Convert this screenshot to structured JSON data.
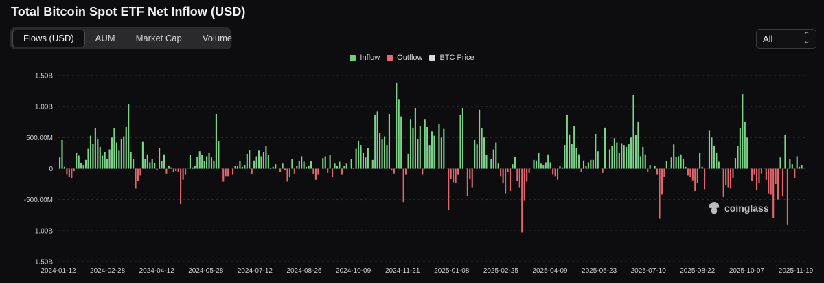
{
  "title": "Total Bitcoin Spot ETF Net Inflow (USD)",
  "tabs": [
    {
      "label": "Flows (USD)",
      "active": true
    },
    {
      "label": "AUM",
      "active": false
    },
    {
      "label": "Market Cap",
      "active": false
    },
    {
      "label": "Volume",
      "active": false
    }
  ],
  "range_selector": {
    "value": "All"
  },
  "legend": [
    {
      "label": "Inflow",
      "color": "#6fcf7c"
    },
    {
      "label": "Outflow",
      "color": "#e56b6f"
    },
    {
      "label": "BTC Price",
      "color": "#d9d9d9"
    }
  ],
  "watermark": "coinglass",
  "colors": {
    "inflow": "#7bd389",
    "outflow": "#e0666c",
    "grid": "#2b2b30",
    "background": "#0d0d0f"
  },
  "chart_data": {
    "type": "bar",
    "title": "Total Bitcoin Spot ETF Net Inflow (USD)",
    "ylim": [
      -1500000000,
      1500000000
    ],
    "y_ticks": [
      {
        "value": 1500000000,
        "label": "1.50B"
      },
      {
        "value": 1000000000,
        "label": "1.00B"
      },
      {
        "value": 500000000,
        "label": "500.00M"
      },
      {
        "value": 0,
        "label": "0"
      },
      {
        "value": -500000000,
        "label": "-500.00M"
      },
      {
        "value": -1000000000,
        "label": "-1.00B"
      },
      {
        "value": -1500000000,
        "label": "-1.50B"
      }
    ],
    "x_ticks": [
      "2024-01-12",
      "2024-02-28",
      "2024-04-12",
      "2024-05-28",
      "2024-07-12",
      "2024-08-26",
      "2024-10-09",
      "2024-11-21",
      "2025-01-08",
      "2025-02-25",
      "2025-04-09",
      "2025-05-23",
      "2025-07-10",
      "2025-08-22",
      "2025-10-07",
      "2025-11-19"
    ],
    "grid": true,
    "legend_position": "top-center",
    "series": [
      {
        "name": "Inflow / Outflow",
        "unit": "USD millions",
        "values": [
          180,
          460,
          30,
          -100,
          -130,
          -150,
          -40,
          250,
          210,
          90,
          60,
          140,
          320,
          530,
          400,
          650,
          480,
          350,
          210,
          260,
          160,
          310,
          500,
          650,
          420,
          290,
          480,
          520,
          670,
          1040,
          270,
          160,
          -320,
          -200,
          -110,
          430,
          150,
          230,
          100,
          160,
          90,
          -30,
          330,
          120,
          230,
          -80,
          50,
          20,
          -60,
          -40,
          -60,
          -570,
          -180,
          -100,
          0,
          220,
          20,
          40,
          190,
          280,
          220,
          120,
          200,
          250,
          180,
          130,
          880,
          440,
          0,
          -210,
          -120,
          -120,
          0,
          -100,
          50,
          50,
          120,
          30,
          60,
          240,
          300,
          -90,
          130,
          200,
          290,
          200,
          270,
          360,
          220,
          10,
          30,
          70,
          0,
          -60,
          80,
          -20,
          -210,
          -130,
          150,
          -80,
          50,
          120,
          200,
          110,
          30,
          40,
          120,
          -90,
          -180,
          -100,
          0,
          170,
          200,
          -70,
          220,
          -140,
          80,
          40,
          110,
          -100,
          40,
          80,
          0,
          160,
          10,
          320,
          450,
          380,
          250,
          180,
          330,
          0,
          140,
          870,
          920,
          580,
          470,
          520,
          380,
          880,
          -30,
          -80,
          1380,
          1120,
          840,
          -540,
          -100,
          240,
          800,
          660,
          980,
          470,
          680,
          -100,
          800,
          670,
          380,
          600,
          530,
          0,
          720,
          500,
          640,
          0,
          -670,
          -160,
          -220,
          -230,
          -100,
          860,
          980,
          0,
          -440,
          -160,
          -300,
          460,
          390,
          950,
          650,
          500,
          220,
          0,
          160,
          310,
          420,
          80,
          -120,
          -240,
          -400,
          -60,
          -360,
          70,
          190,
          -200,
          -300,
          -1030,
          -510,
          -210,
          -70,
          0,
          140,
          130,
          250,
          80,
          60,
          100,
          230,
          100,
          -100,
          -120,
          -180,
          40,
          20,
          380,
          860,
          550,
          400,
          680,
          330,
          230,
          -60,
          130,
          40,
          100,
          140,
          140,
          560,
          280,
          0,
          -70,
          660,
          0,
          310,
          360,
          490,
          420,
          250,
          410,
          380,
          350,
          400,
          500,
          1190,
          540,
          760,
          200,
          350,
          230,
          -60,
          60,
          0,
          40,
          -100,
          -810,
          -420,
          -130,
          120,
          0,
          180,
          390,
          190,
          200,
          230,
          150,
          30,
          -110,
          -130,
          -190,
          -360,
          -230,
          250,
          30,
          -330,
          0,
          620,
          500,
          360,
          250,
          110,
          0,
          -460,
          -260,
          -300,
          -320,
          -150,
          170,
          360,
          650,
          1200,
          750,
          500,
          0,
          -200,
          -100,
          -350,
          -240,
          -80,
          0,
          -180,
          -400,
          -420,
          -800,
          -250,
          -500,
          180,
          -450,
          540,
          -900,
          160,
          70,
          -150,
          200,
          30,
          60
        ]
      }
    ]
  }
}
